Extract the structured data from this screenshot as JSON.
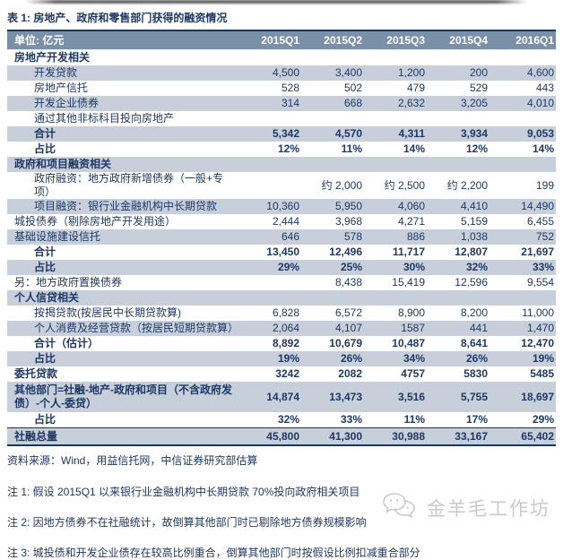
{
  "title": "表 1: 房地产、政府和零售部门获得的融资情况",
  "table": {
    "unit_label": "单位: 亿元",
    "columns": [
      "2015Q1",
      "2015Q2",
      "2015Q3",
      "2015Q4",
      "2016Q1"
    ],
    "rows": [
      {
        "name": "row-real-estate-section",
        "label": "房地产开发相关",
        "values": [
          "",
          "",
          "",
          "",
          ""
        ],
        "shaded": false,
        "bold": true,
        "indent": false
      },
      {
        "name": "row-development-loans",
        "label": "开发贷款",
        "values": [
          "4,500",
          "3,400",
          "1,200",
          "200",
          "4,600"
        ],
        "shaded": true,
        "bold": false,
        "indent": true
      },
      {
        "name": "row-real-estate-trust",
        "label": "房地产信托",
        "values": [
          "528",
          "502",
          "479",
          "529",
          "443"
        ],
        "shaded": false,
        "bold": false,
        "indent": true
      },
      {
        "name": "row-developer-bonds",
        "label": "开发企业债券",
        "values": [
          "314",
          "668",
          "2,632",
          "3,205",
          "4,010"
        ],
        "shaded": true,
        "bold": false,
        "indent": true
      },
      {
        "name": "row-nonstandard-to-real-estate",
        "label": "通过其他非标科目投向房地产",
        "values": [
          "",
          "",
          "",
          "",
          ""
        ],
        "shaded": false,
        "bold": false,
        "indent": true
      },
      {
        "name": "row-real-estate-total",
        "label": "合计",
        "values": [
          "5,342",
          "4,570",
          "4,311",
          "3,934",
          "9,053"
        ],
        "shaded": true,
        "bold": true,
        "indent": true
      },
      {
        "name": "row-real-estate-share",
        "label": "占比",
        "values": [
          "12%",
          "11%",
          "14%",
          "12%",
          "14%"
        ],
        "shaded": false,
        "bold": true,
        "indent": true
      },
      {
        "name": "row-government-section",
        "label": "政府和项目融资相关",
        "values": [
          "",
          "",
          "",
          "",
          ""
        ],
        "shaded": true,
        "bold": true,
        "indent": false
      },
      {
        "name": "row-government-financing",
        "label": "政府融资：地方政府新增债券（一般+专项）",
        "values": [
          "",
          "约 2,000",
          "约 2,500",
          "约 2,200",
          "199"
        ],
        "shaded": false,
        "bold": false,
        "indent": true
      },
      {
        "name": "row-project-financing",
        "label": "项目融资：银行业金融机构中长期贷款",
        "values": [
          "10,360",
          "5,950",
          "4,060",
          "4,410",
          "14,490"
        ],
        "shaded": true,
        "bold": false,
        "indent": true
      },
      {
        "name": "row-chengtou-bonds",
        "label": "城投债券（剔除房地产开发用途）",
        "values": [
          "2,444",
          "3,968",
          "4,271",
          "5,159",
          "6,455"
        ],
        "shaded": false,
        "bold": false,
        "indent": false
      },
      {
        "name": "row-infrastructure-trust",
        "label": "基础设施建设信托",
        "values": [
          "646",
          "578",
          "886",
          "1,038",
          "752"
        ],
        "shaded": true,
        "bold": false,
        "indent": false
      },
      {
        "name": "row-government-total",
        "label": "合计",
        "values": [
          "13,450",
          "12,496",
          "11,717",
          "12,807",
          "21,697"
        ],
        "shaded": false,
        "bold": true,
        "indent": true
      },
      {
        "name": "row-government-share",
        "label": "占比",
        "values": [
          "29%",
          "25%",
          "30%",
          "32%",
          "33%"
        ],
        "shaded": true,
        "bold": true,
        "indent": true
      },
      {
        "name": "row-swap-bonds",
        "label": "另：地方政府置换债券",
        "values": [
          "",
          "8,438",
          "15,419",
          "12,596",
          "9,554"
        ],
        "shaded": false,
        "bold": false,
        "indent": false
      },
      {
        "name": "row-personal-credit-section",
        "label": "个人信贷相关",
        "values": [
          "",
          "",
          "",
          "",
          ""
        ],
        "shaded": true,
        "bold": true,
        "indent": false
      },
      {
        "name": "row-mortgage-loans",
        "label": "按揭贷款(按居民中长期贷款算)",
        "values": [
          "6,828",
          "6,572",
          "8,900",
          "8,200",
          "11,000"
        ],
        "shaded": false,
        "bold": false,
        "indent": true
      },
      {
        "name": "row-personal-consumption-loans",
        "label": "个人消费及经营贷款（按居民短期贷款算）",
        "values": [
          "2,064",
          "4,107",
          "1587",
          "441",
          "1,470"
        ],
        "shaded": true,
        "bold": false,
        "indent": true
      },
      {
        "name": "row-personal-total",
        "label": "合计（估计）",
        "values": [
          "8,892",
          "10,679",
          "10,487",
          "8,641",
          "12,470"
        ],
        "shaded": false,
        "bold": true,
        "indent": true
      },
      {
        "name": "row-personal-share",
        "label": "占比",
        "values": [
          "19%",
          "26%",
          "34%",
          "26%",
          "19%"
        ],
        "shaded": true,
        "bold": true,
        "indent": true
      },
      {
        "name": "row-entrusted-loans",
        "label": "委托贷款",
        "values": [
          "3242",
          "2082",
          "4757",
          "5830",
          "5485"
        ],
        "shaded": false,
        "bold": true,
        "indent": false
      },
      {
        "name": "row-other-sectors",
        "label": "其他部门=社融-地产-政府和项目（不含政府发债）-个人-委贷）",
        "values": [
          "14,874",
          "13,473",
          "3,516",
          "5,755",
          "18,697"
        ],
        "shaded": true,
        "bold": true,
        "indent": false,
        "two_line": true
      },
      {
        "name": "row-other-share",
        "label": "占比",
        "values": [
          "32%",
          "33%",
          "11%",
          "17%",
          "29%"
        ],
        "shaded": false,
        "bold": true,
        "indent": true
      },
      {
        "name": "row-total-social-financing",
        "label": "社融总量",
        "values": [
          "45,800",
          "41,300",
          "30,988",
          "33,167",
          "65,402"
        ],
        "shaded": true,
        "bold": true,
        "indent": false,
        "grand_total": true
      }
    ]
  },
  "source": "资料来源：Wind，用益信托网，中信证券研究部估算",
  "notes": [
    "注 1: 假设 2015Q1 以来银行业金融机构中长期贷款 70%投向政府相关项目",
    "注 2: 因地方债券不在社融统计，故倒算其他部门时已剔除地方债券规模影响",
    "注 3: 城投债和开发企业债存在较高比例重合，倒算其他部门时按假设比例扣减重合部分"
  ],
  "watermark": {
    "icon": "chat-bubbles-logo-icon",
    "text": "金羊毛工作坊"
  },
  "colors": {
    "header_bg": "#7A8FA8",
    "shaded_row_bg": "#C6CFDA",
    "navy_text": "#1F3864",
    "border_navy": "#17375E",
    "watermark_gray": "#C7CAD1"
  }
}
